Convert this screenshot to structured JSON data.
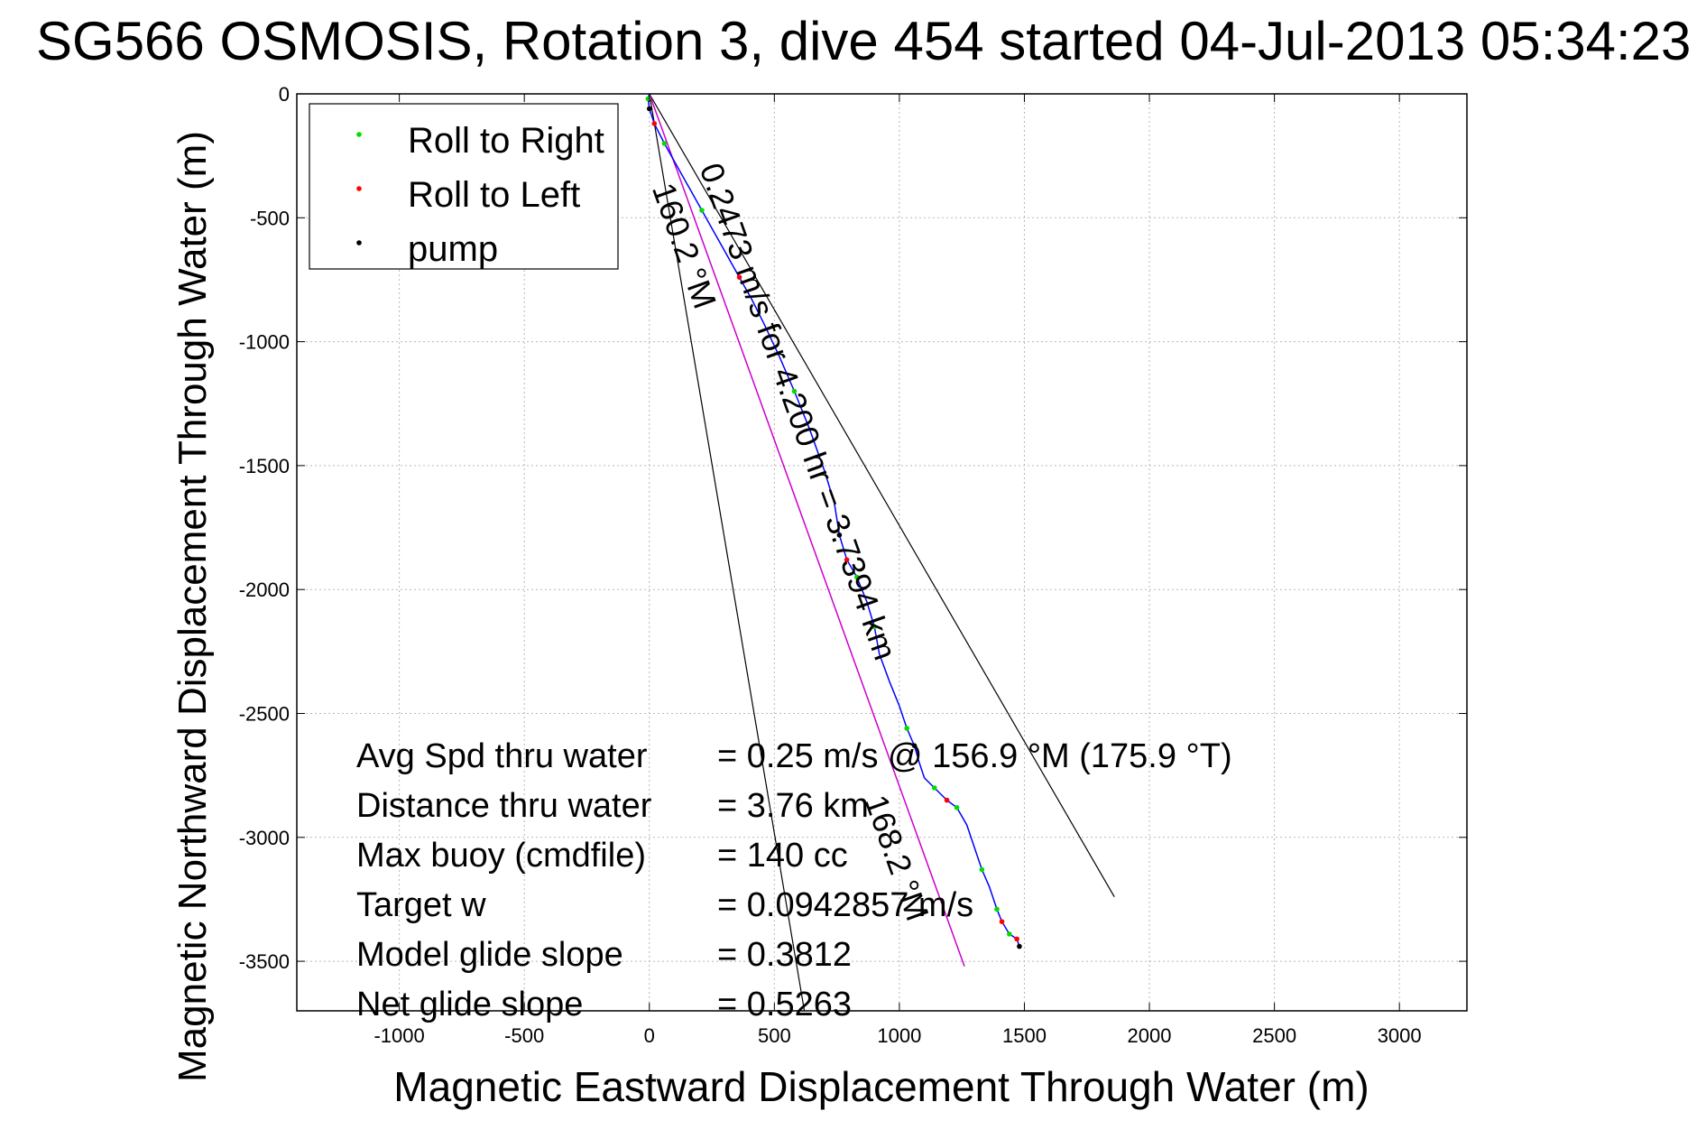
{
  "chart_data": {
    "type": "line",
    "title": "SG566 OSMOSIS, Rotation 3, dive 454 started 04-Jul-2013 05:34:23",
    "xlabel": "Magnetic Eastward Displacement Through Water (m)",
    "ylabel": "Magnetic Northward Displacement Through Water (m)",
    "xlim": [
      -1410,
      3270
    ],
    "ylim": [
      -3700,
      0
    ],
    "xticks": [
      -1000,
      -500,
      0,
      500,
      1000,
      1500,
      2000,
      2500,
      3000
    ],
    "yticks": [
      0,
      -500,
      -1000,
      -1500,
      -2000,
      -2500,
      -3000,
      -3500
    ],
    "grid": true,
    "legend_position": "top-left",
    "colors": {
      "track": "#0000ff",
      "roll_right": "#00dd00",
      "roll_left": "#ff0000",
      "pump": "#000000",
      "heading_line": "#cc00cc",
      "cone_line": "#000000"
    },
    "legend": [
      {
        "label": "Roll to Right",
        "color": "#00dd00"
      },
      {
        "label": "Roll to Left",
        "color": "#ff0000"
      },
      {
        "label": "pump",
        "color": "#000000"
      }
    ],
    "track": {
      "name": "track",
      "x": [
        0,
        -5,
        0,
        20,
        60,
        110,
        160,
        210,
        260,
        310,
        360,
        410,
        460,
        520,
        580,
        640,
        700,
        740,
        760,
        790,
        830,
        870,
        900,
        920,
        960,
        1000,
        1030,
        1060,
        1080,
        1100,
        1140,
        1190,
        1230,
        1270,
        1300,
        1330,
        1360,
        1390,
        1410,
        1440,
        1470,
        1480
      ],
      "y": [
        0,
        -20,
        -60,
        -120,
        -200,
        -290,
        -380,
        -470,
        -560,
        -650,
        -740,
        -830,
        -930,
        -1060,
        -1200,
        -1350,
        -1520,
        -1650,
        -1780,
        -1880,
        -1950,
        -2050,
        -2150,
        -2260,
        -2370,
        -2470,
        -2560,
        -2630,
        -2700,
        -2760,
        -2800,
        -2850,
        -2880,
        -2950,
        -3040,
        -3130,
        -3200,
        -3290,
        -3340,
        -3390,
        -3410,
        -3440
      ]
    },
    "roll_right_points": {
      "x": [
        -5,
        60,
        210,
        580,
        830,
        900,
        1030,
        1140,
        1230,
        1330,
        1390,
        1440
      ],
      "y": [
        -20,
        -200,
        -470,
        -1200,
        -1950,
        -2150,
        -2560,
        -2800,
        -2880,
        -3130,
        -3290,
        -3390
      ]
    },
    "roll_left_points": {
      "x": [
        20,
        360,
        790,
        1190,
        1410,
        1470
      ],
      "y": [
        -120,
        -740,
        -1880,
        -2850,
        -3340,
        -3410
      ]
    },
    "pump_points": {
      "x": [
        0,
        760,
        1060,
        1480
      ],
      "y": [
        -60,
        -1780,
        -2630,
        -3440
      ]
    },
    "heading_line": {
      "x": [
        0,
        1260
      ],
      "y": [
        0,
        -3520
      ]
    },
    "cone_lines": [
      {
        "x": [
          0,
          620
        ],
        "y": [
          0,
          -3700
        ]
      },
      {
        "x": [
          0,
          1860
        ],
        "y": [
          0,
          -3240
        ]
      }
    ],
    "annotations": [
      {
        "text": "0.2473 m/s for 4.200 hr = 3.7394 km",
        "x": 200,
        "y": -300,
        "rotation_deg": 70.3
      },
      {
        "text": "160.2 °M",
        "x": 10,
        "y": -380,
        "rotation_deg": 70.3
      },
      {
        "text": "168.2 °M",
        "x": 860,
        "y": -2850,
        "rotation_deg": 70.3
      }
    ],
    "stats": [
      {
        "label": "Avg Spd thru water",
        "value": "=  0.25 m/s @ 156.9 °M (175.9 °T)"
      },
      {
        "label": "Distance thru water",
        "value": "=  3.76 km"
      },
      {
        "label": "Max buoy (cmdfile)",
        "value": "= 140 cc"
      },
      {
        "label": "Target w",
        "value": "= 0.0942857 m/s"
      },
      {
        "label": "Model glide slope",
        "value": "= 0.3812"
      },
      {
        "label": "Net glide slope",
        "value": "= 0.5263"
      }
    ]
  }
}
